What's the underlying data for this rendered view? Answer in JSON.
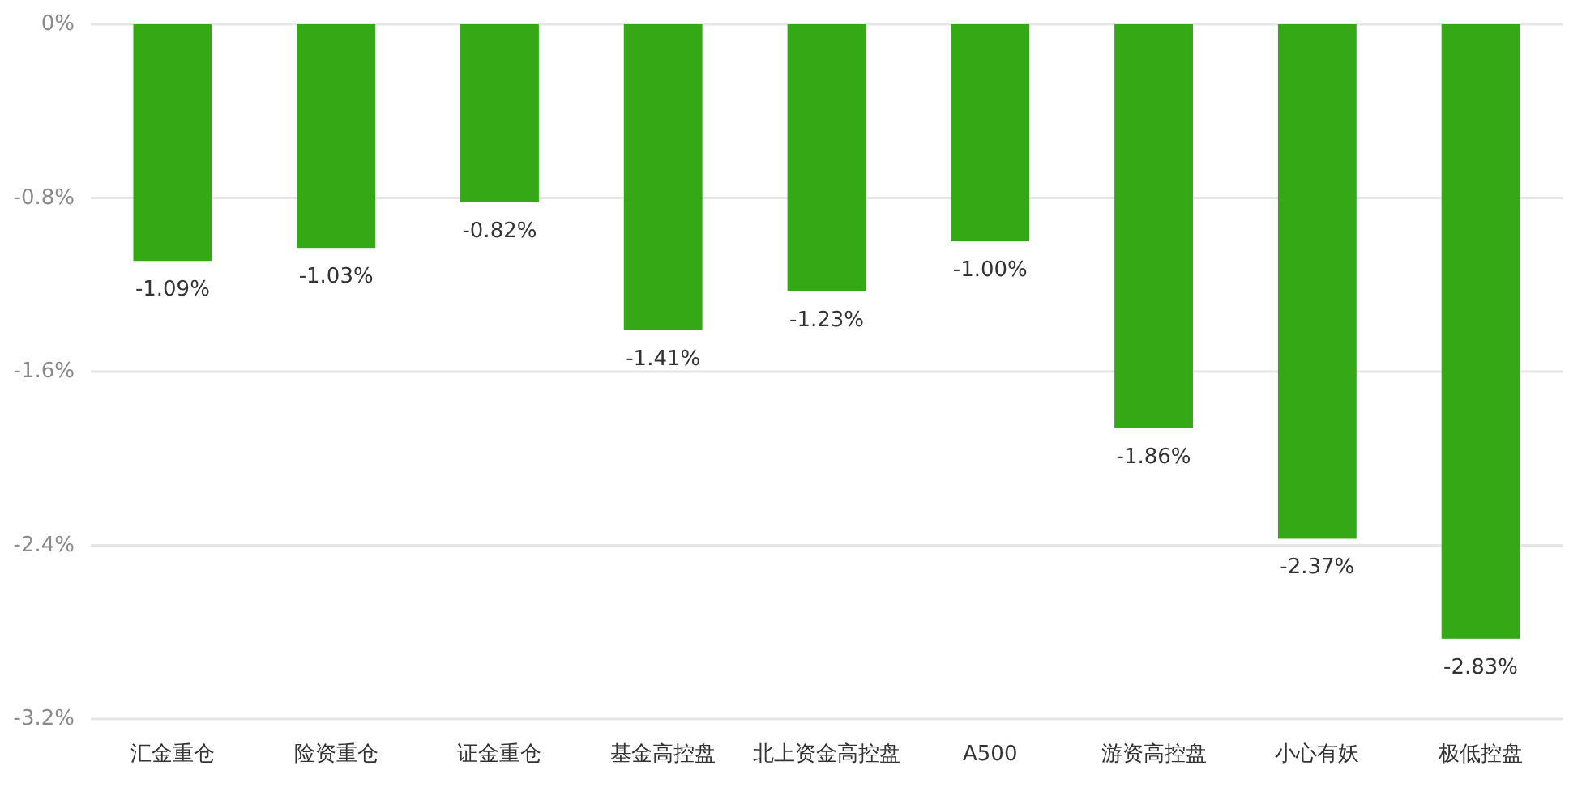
{
  "chart_data": {
    "type": "bar",
    "categories": [
      "汇金重仓",
      "险资重仓",
      "证金重仓",
      "基金高控盘",
      "北上资金高控盘",
      "A500",
      "游资高控盘",
      "小心有妖",
      "极低控盘"
    ],
    "values": [
      -1.09,
      -1.03,
      -0.82,
      -1.41,
      -1.23,
      -1.0,
      -1.86,
      -2.37,
      -2.83
    ],
    "color": "#34a915",
    "value_labels": [
      "-1.09%",
      "-1.03%",
      "-0.82%",
      "-1.41%",
      "-1.23%",
      "-1.00%",
      "-1.86%",
      "-2.37%",
      "-2.83%"
    ],
    "ylim": [
      -3.2,
      0
    ],
    "yticks": [
      {
        "value": 0,
        "label": "0%"
      },
      {
        "value": -0.8,
        "label": "-0.8%"
      },
      {
        "value": -1.6,
        "label": "-1.6%"
      },
      {
        "value": -2.4,
        "label": "-2.4%"
      },
      {
        "value": -3.2,
        "label": "-3.2%"
      }
    ],
    "grid": "y"
  }
}
